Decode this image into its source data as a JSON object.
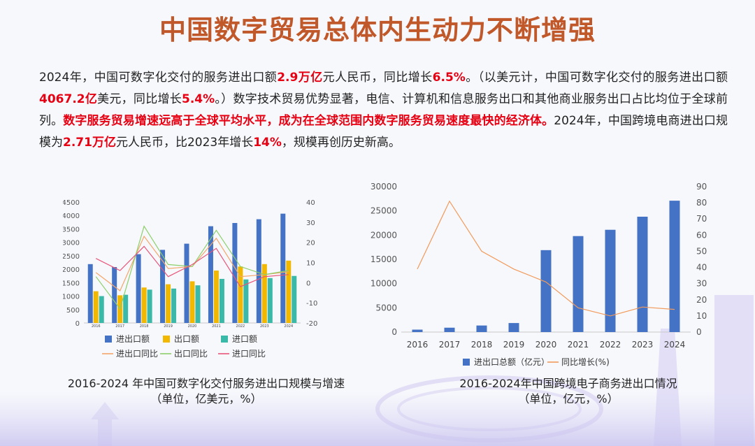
{
  "page_title": "中国数字贸易总体内生动力不断增强",
  "paragraph": [
    {
      "t": "2024年，中国可数字化交付的服务进出口额",
      "h": false
    },
    {
      "t": "2.9万亿",
      "h": true
    },
    {
      "t": "元人民币，同比增长",
      "h": false
    },
    {
      "t": "6.5%",
      "h": true
    },
    {
      "t": "。（以美元计，中国可数字化交付的服务进出口额",
      "h": false
    },
    {
      "t": "4067.2亿",
      "h": true
    },
    {
      "t": "美元，同比增长",
      "h": false
    },
    {
      "t": "5.4%",
      "h": true
    },
    {
      "t": "。）数字技术贸易优势显著，电信、计算机和信息服务出口和其他商业服务出口占比均位于全球前列。",
      "h": false
    },
    {
      "t": "数字服务贸易增速远高于全球平均水平，成为在全球范围内数字服务贸易速度最快的经济体。",
      "h": true
    },
    {
      "t": "2024年，中国跨境电商进出口规模为",
      "h": false
    },
    {
      "t": "2.71万亿",
      "h": true
    },
    {
      "t": "元人民币，比2023年增长",
      "h": false
    },
    {
      "t": "14%",
      "h": true
    },
    {
      "t": "，规模再创历史新高。",
      "h": false
    }
  ],
  "captions": {
    "left_line1": "2016-2024 年中国可数字化交付服务进出口规模与增速",
    "left_line2": "（单位，亿美元，%）",
    "right_line1": "2016-2024年中国跨境电子商务进出口情况",
    "right_line2": "（单位，亿元，%）"
  },
  "chart_data": [
    {
      "type": "bar",
      "title": "",
      "categories": [
        "2016",
        "2017",
        "2018",
        "2019",
        "2020",
        "2021",
        "2022",
        "2023",
        "2024"
      ],
      "ylim": [
        0,
        4500
      ],
      "y_ticks": [
        0,
        500,
        1000,
        1500,
        2000,
        2500,
        3000,
        3500,
        4000,
        4500
      ],
      "y2lim": [
        -20,
        40
      ],
      "y2_ticks": [
        -20,
        -10,
        0,
        10,
        20,
        30,
        40
      ],
      "grid": false,
      "legend": "bottom",
      "colors": {
        "进出口额": "#4472c4",
        "出口额": "#f2b800",
        "进口额": "#3bb9a8",
        "进出口同比": "#f4a66a",
        "出口同比": "#8ccf6a",
        "进口同比": "#e8567a"
      },
      "series": [
        {
          "name": "进出口额",
          "kind": "bar",
          "axis": "left",
          "values": [
            2190,
            2080,
            2560,
            2720,
            2950,
            3600,
            3720,
            3860,
            4067
          ]
        },
        {
          "name": "出口额",
          "kind": "bar",
          "axis": "left",
          "values": [
            1180,
            1030,
            1320,
            1440,
            1550,
            1950,
            2100,
            2190,
            2320
          ]
        },
        {
          "name": "进口额",
          "kind": "bar",
          "axis": "left",
          "values": [
            1000,
            1050,
            1240,
            1280,
            1400,
            1640,
            1620,
            1670,
            1750
          ]
        },
        {
          "name": "进出口同比",
          "kind": "line",
          "axis": "right",
          "values": [
            5,
            -4,
            23,
            7,
            8,
            22,
            3,
            4,
            5.4
          ]
        },
        {
          "name": "出口同比",
          "kind": "line",
          "axis": "right",
          "values": [
            3,
            -13,
            28,
            9,
            8,
            26,
            8,
            4,
            6
          ]
        },
        {
          "name": "进口同比",
          "kind": "line",
          "axis": "right",
          "values": [
            12,
            6,
            18,
            3,
            9,
            17,
            -2,
            3,
            4
          ]
        }
      ]
    },
    {
      "type": "bar",
      "title": "",
      "categories": [
        "2016",
        "2017",
        "2018",
        "2019",
        "2020",
        "2021",
        "2022",
        "2023",
        "2024"
      ],
      "ylim": [
        0,
        30000
      ],
      "y_ticks": [
        0,
        5000,
        10000,
        15000,
        20000,
        25000,
        30000
      ],
      "y2lim": [
        0,
        90
      ],
      "y2_ticks": [
        0,
        10,
        20,
        30,
        40,
        50,
        60,
        70,
        80,
        90
      ],
      "grid": false,
      "legend": "bottom",
      "colors": {
        "进出口总额（亿元）": "#4472c4",
        "同比增长(%)": "#f19a5a"
      },
      "series": [
        {
          "name": "进出口总额（亿元）",
          "kind": "bar",
          "axis": "left",
          "values": [
            500,
            900,
            1350,
            1860,
            16900,
            19800,
            21100,
            23800,
            27100
          ]
        },
        {
          "name": "同比增长(%)",
          "kind": "line",
          "axis": "right",
          "values": [
            39,
            81,
            50,
            39,
            31,
            15,
            10,
            15.5,
            14
          ]
        }
      ]
    }
  ]
}
